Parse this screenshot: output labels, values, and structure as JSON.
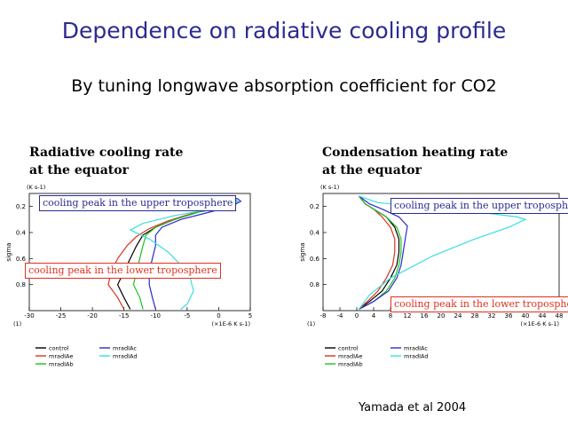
{
  "slide": {
    "title": "Dependence on radiative cooling profile",
    "subtitle": "By tuning longwave absorption coefficient for CO2",
    "credit": "Yamada et  al 2004"
  },
  "panels": [
    {
      "title_line1": "Radiative cooling rate",
      "title_line2": "at the equator",
      "annot_top": "cooling peak in the upper troposphere",
      "annot_bottom": "cooling peak in the lower troposphere"
    },
    {
      "title_line1": "Condensation heating rate",
      "title_line2": "at the equator",
      "annot_top": "cooling peak in the upper troposphere",
      "annot_bottom": "cooling peak in the lower troposphere"
    }
  ],
  "colors": {
    "control": "#000000",
    "mradIAc": "#2a2ad0",
    "mradIAe": "#e0301e",
    "mradIAd": "#35e0e0",
    "mradIAb": "#20c020",
    "annot_blue": "#2b2b8f",
    "annot_red": "#e0301e"
  },
  "chart_data": [
    {
      "type": "line",
      "title": "Radiative cooling rate at the equator",
      "ylabel": "sigma",
      "y_unit_label": "(K s-1)",
      "x_unit_label": "(×1E-6 K s-1)",
      "x_corner_label": "(1)",
      "xlim": [
        -30,
        5
      ],
      "ylim": [
        0.1,
        1.0
      ],
      "y_reversed": true,
      "x_ticks": [
        -30,
        -25,
        -20,
        -15,
        -10,
        -5,
        0,
        5
      ],
      "x_tick_labels": [
        "-30",
        "-25",
        "-20",
        "-15",
        "-10",
        "-5",
        "0",
        "5"
      ],
      "y_ticks": [
        0.2,
        0.4,
        0.6,
        0.8
      ],
      "y_tick_labels": [
        "0.2",
        "0.4",
        "0.6",
        "0.8"
      ],
      "legend": [
        {
          "label": "control",
          "key": "control"
        },
        {
          "label": "mradIAe",
          "key": "mradIAe"
        },
        {
          "label": "mradIAb",
          "key": "mradIAb"
        },
        {
          "label": "mradIAc",
          "key": "mradIAc"
        },
        {
          "label": "mradIAd",
          "key": "mradIAd"
        }
      ],
      "series": [
        {
          "key": "control",
          "points": [
            [
              0.5,
              0.12
            ],
            [
              2.5,
              0.14
            ],
            [
              3.0,
              0.16
            ],
            [
              1.5,
              0.2
            ],
            [
              -3,
              0.24
            ],
            [
              -7,
              0.3
            ],
            [
              -10,
              0.36
            ],
            [
              -12,
              0.42
            ],
            [
              -13,
              0.5
            ],
            [
              -14,
              0.6
            ],
            [
              -15,
              0.7
            ],
            [
              -16,
              0.8
            ],
            [
              -15,
              0.9
            ],
            [
              -14,
              0.99
            ]
          ]
        },
        {
          "key": "mradIAe",
          "points": [
            [
              0.5,
              0.12
            ],
            [
              2.5,
              0.14
            ],
            [
              3.0,
              0.16
            ],
            [
              1.5,
              0.2
            ],
            [
              -4,
              0.25
            ],
            [
              -8,
              0.31
            ],
            [
              -11,
              0.37
            ],
            [
              -13,
              0.43
            ],
            [
              -14.5,
              0.5
            ],
            [
              -16,
              0.6
            ],
            [
              -17,
              0.7
            ],
            [
              -17.5,
              0.8
            ],
            [
              -16,
              0.9
            ],
            [
              -15,
              0.99
            ]
          ]
        },
        {
          "key": "mradIAb",
          "points": [
            [
              0.5,
              0.12
            ],
            [
              2.5,
              0.14
            ],
            [
              3.0,
              0.16
            ],
            [
              1.5,
              0.2
            ],
            [
              -3,
              0.24
            ],
            [
              -7,
              0.3
            ],
            [
              -10,
              0.36
            ],
            [
              -11.5,
              0.42
            ],
            [
              -12,
              0.5
            ],
            [
              -12.5,
              0.6
            ],
            [
              -13,
              0.7
            ],
            [
              -13.5,
              0.8
            ],
            [
              -12.5,
              0.9
            ],
            [
              -12,
              0.99
            ]
          ]
        },
        {
          "key": "mradIAc",
          "points": [
            [
              0.5,
              0.12
            ],
            [
              3.0,
              0.14
            ],
            [
              3.5,
              0.16
            ],
            [
              2.0,
              0.2
            ],
            [
              -2,
              0.25
            ],
            [
              -6,
              0.3
            ],
            [
              -9,
              0.36
            ],
            [
              -10,
              0.42
            ],
            [
              -10,
              0.5
            ],
            [
              -10.5,
              0.6
            ],
            [
              -11,
              0.7
            ],
            [
              -11,
              0.8
            ],
            [
              -10.5,
              0.9
            ],
            [
              -10,
              0.99
            ]
          ]
        },
        {
          "key": "mradIAd",
          "points": [
            [
              0.5,
              0.12
            ],
            [
              2.5,
              0.14
            ],
            [
              3.0,
              0.16
            ],
            [
              1.0,
              0.2
            ],
            [
              -7,
              0.27
            ],
            [
              -12,
              0.33
            ],
            [
              -14,
              0.38
            ],
            [
              -11,
              0.45
            ],
            [
              -8,
              0.55
            ],
            [
              -6,
              0.65
            ],
            [
              -4.5,
              0.75
            ],
            [
              -4,
              0.85
            ],
            [
              -5,
              0.95
            ],
            [
              -6,
              0.99
            ]
          ]
        }
      ]
    },
    {
      "type": "line",
      "title": "Condensation heating rate at the equator",
      "ylabel": "sigma",
      "y_unit_label": "(K s-1)",
      "x_unit_label": "(×1E-6 K s-1)",
      "x_corner_label": "(1)",
      "xlim": [
        -8,
        48
      ],
      "ylim": [
        0.1,
        1.0
      ],
      "y_reversed": true,
      "x_ticks": [
        -8,
        -4,
        0,
        4,
        8,
        12,
        16,
        20,
        24,
        28,
        32,
        36,
        40,
        44,
        48
      ],
      "x_tick_labels": [
        "-8",
        "-4",
        "0",
        "4",
        "8",
        "12",
        "16",
        "20",
        "24",
        "28",
        "32",
        "36",
        "40",
        "44",
        "48"
      ],
      "y_ticks": [
        0.2,
        0.4,
        0.6,
        0.8
      ],
      "y_tick_labels": [
        "0.2",
        "0.4",
        "0.6",
        "0.8"
      ],
      "legend": [
        {
          "label": "control",
          "key": "control"
        },
        {
          "label": "mradIAe",
          "key": "mradIAe"
        },
        {
          "label": "mradIAb",
          "key": "mradIAb"
        },
        {
          "label": "mradIAc",
          "key": "mradIAc"
        },
        {
          "label": "mradIAd",
          "key": "mradIAd"
        }
      ],
      "series": [
        {
          "key": "control",
          "points": [
            [
              0.5,
              0.12
            ],
            [
              2,
              0.18
            ],
            [
              4,
              0.22
            ],
            [
              7,
              0.28
            ],
            [
              9,
              0.36
            ],
            [
              10,
              0.45
            ],
            [
              10,
              0.55
            ],
            [
              9.5,
              0.65
            ],
            [
              8,
              0.75
            ],
            [
              6,
              0.85
            ],
            [
              3,
              0.93
            ],
            [
              0.5,
              0.99
            ]
          ]
        },
        {
          "key": "mradIAe",
          "points": [
            [
              0.5,
              0.12
            ],
            [
              2,
              0.18
            ],
            [
              4,
              0.22
            ],
            [
              6,
              0.28
            ],
            [
              8,
              0.36
            ],
            [
              9,
              0.45
            ],
            [
              9,
              0.55
            ],
            [
              8.5,
              0.65
            ],
            [
              7,
              0.75
            ],
            [
              5,
              0.85
            ],
            [
              2.5,
              0.93
            ],
            [
              0.5,
              0.99
            ]
          ]
        },
        {
          "key": "mradIAb",
          "points": [
            [
              0.5,
              0.12
            ],
            [
              2,
              0.18
            ],
            [
              4,
              0.22
            ],
            [
              7,
              0.28
            ],
            [
              9.5,
              0.36
            ],
            [
              10.5,
              0.45
            ],
            [
              10.5,
              0.55
            ],
            [
              10,
              0.65
            ],
            [
              9,
              0.75
            ],
            [
              7,
              0.85
            ],
            [
              4,
              0.93
            ],
            [
              0.5,
              0.99
            ]
          ]
        },
        {
          "key": "mradIAc",
          "points": [
            [
              0.5,
              0.12
            ],
            [
              3,
              0.18
            ],
            [
              6,
              0.22
            ],
            [
              10,
              0.28
            ],
            [
              12,
              0.35
            ],
            [
              11.5,
              0.45
            ],
            [
              11,
              0.55
            ],
            [
              10.5,
              0.65
            ],
            [
              9.5,
              0.75
            ],
            [
              7.5,
              0.85
            ],
            [
              4,
              0.93
            ],
            [
              0.5,
              0.99
            ]
          ]
        },
        {
          "key": "mradIAd",
          "points": [
            [
              0.5,
              0.12
            ],
            [
              5,
              0.17
            ],
            [
              15,
              0.2
            ],
            [
              28,
              0.24
            ],
            [
              38,
              0.28
            ],
            [
              40,
              0.3
            ],
            [
              36,
              0.36
            ],
            [
              28,
              0.45
            ],
            [
              18,
              0.58
            ],
            [
              8,
              0.75
            ],
            [
              3,
              0.88
            ],
            [
              0.5,
              0.99
            ]
          ]
        }
      ]
    }
  ]
}
